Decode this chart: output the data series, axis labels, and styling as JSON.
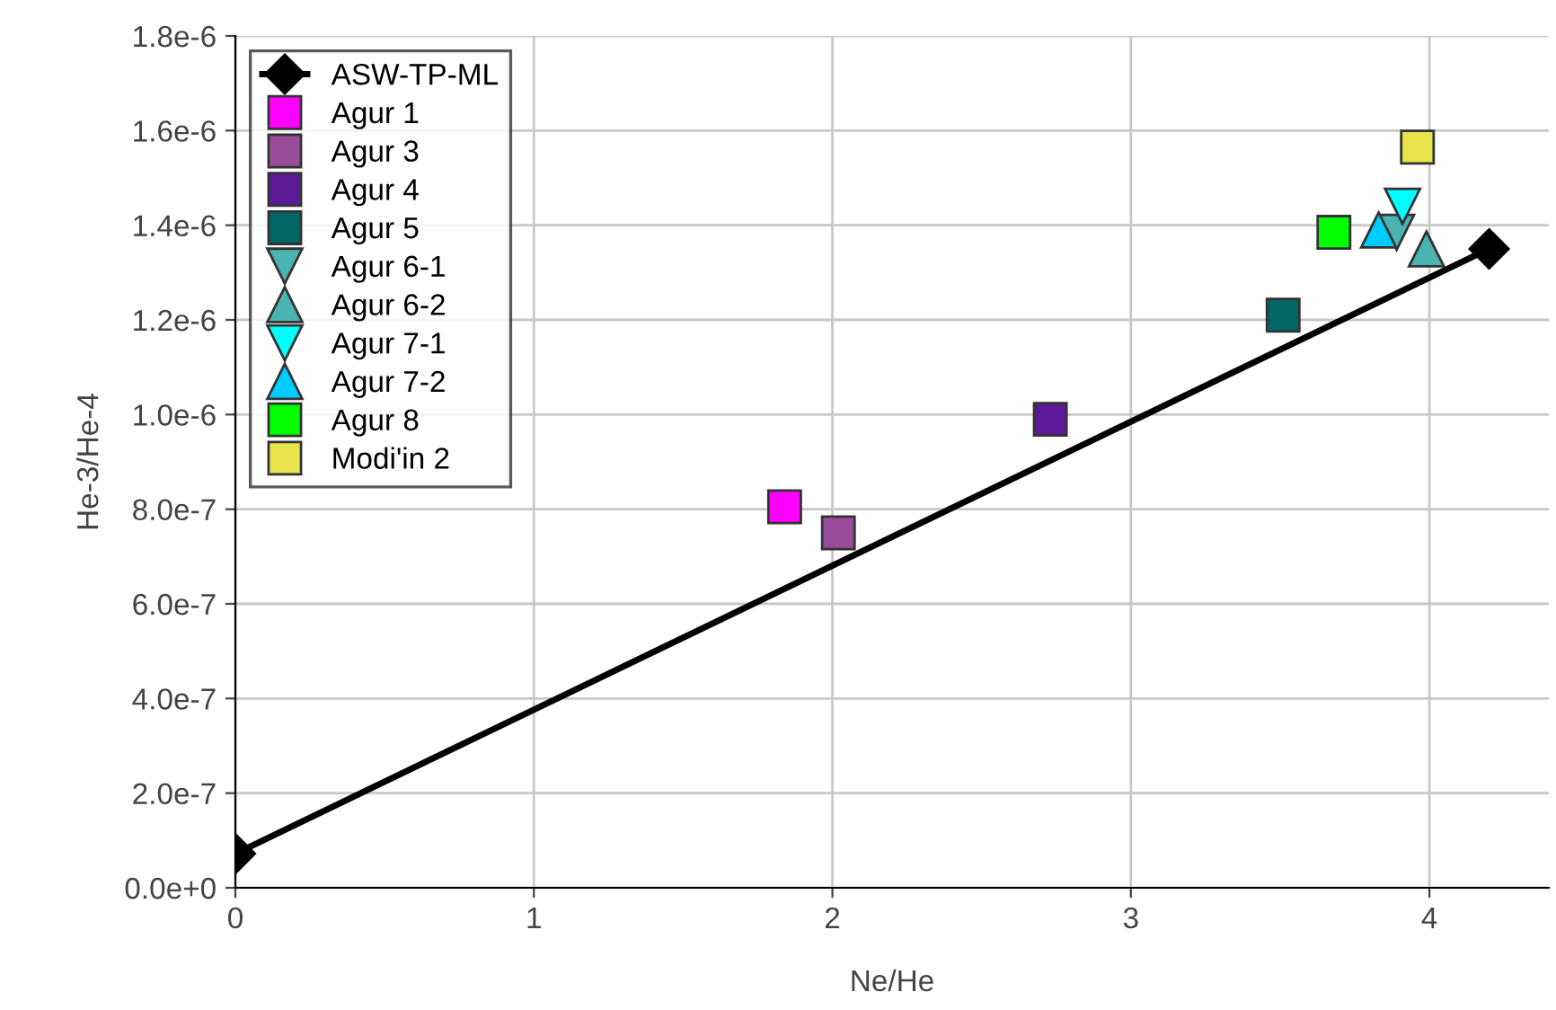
{
  "chart_data": {
    "type": "scatter",
    "xlabel": "Ne/He",
    "ylabel": "He-3/He-4",
    "xlim": [
      0,
      4.4
    ],
    "ylim": [
      0,
      1.8e-06
    ],
    "xticks": [
      0,
      1,
      2,
      3,
      4
    ],
    "yticks": [
      {
        "value": 0,
        "label": "0.0e+0"
      },
      {
        "value": 2e-07,
        "label": "2.0e-7"
      },
      {
        "value": 4e-07,
        "label": "4.0e-7"
      },
      {
        "value": 6e-07,
        "label": "6.0e-7"
      },
      {
        "value": 8e-07,
        "label": "8.0e-7"
      },
      {
        "value": 1e-06,
        "label": "1.0e-6"
      },
      {
        "value": 1.2e-06,
        "label": "1.2e-6"
      },
      {
        "value": 1.4e-06,
        "label": "1.4e-6"
      },
      {
        "value": 1.6e-06,
        "label": "1.6e-6"
      },
      {
        "value": 1.8e-06,
        "label": "1.8e-6"
      }
    ],
    "grid": true,
    "legend": "top left",
    "series": [
      {
        "name": "ASW-TP-ML",
        "type": "line",
        "marker": "diamond",
        "color": "#000000",
        "x": [
          0,
          4.2
        ],
        "values": [
          7.2e-08,
          1.35e-06
        ]
      },
      {
        "name": "Agur 1",
        "marker": "square",
        "color": "#ff00ff",
        "x": [
          1.84
        ],
        "values": [
          8.05e-07
        ]
      },
      {
        "name": "Agur 3",
        "marker": "square",
        "color": "#994c99",
        "x": [
          2.02
        ],
        "values": [
          7.5e-07
        ]
      },
      {
        "name": "Agur 4",
        "marker": "square",
        "color": "#5c1a99",
        "x": [
          2.73
        ],
        "values": [
          9.9e-07
        ]
      },
      {
        "name": "Agur 5",
        "marker": "square",
        "color": "#006666",
        "x": [
          3.51
        ],
        "values": [
          1.21e-06
        ]
      },
      {
        "name": "Agur 6-1",
        "marker": "triangle_down",
        "color": "#4cb3b3",
        "x": [
          3.89
        ],
        "values": [
          1.385e-06
        ]
      },
      {
        "name": "Agur 6-2",
        "marker": "triangle",
        "color": "#4cb3b3",
        "x": [
          3.99
        ],
        "values": [
          1.35e-06
        ]
      },
      {
        "name": "Agur 7-1",
        "marker": "triangle_down",
        "color": "#00ffff",
        "x": [
          3.91
        ],
        "values": [
          1.44e-06
        ]
      },
      {
        "name": "Agur 7-2",
        "marker": "triangle",
        "color": "#00ccff",
        "x": [
          3.83
        ],
        "values": [
          1.39e-06
        ]
      },
      {
        "name": "Agur 8",
        "marker": "square",
        "color": "#00ff00",
        "x": [
          3.68
        ],
        "values": [
          1.385e-06
        ]
      },
      {
        "name": "Modi'in 2",
        "marker": "square",
        "color": "#e6e64c",
        "x": [
          3.96
        ],
        "values": [
          1.565e-06
        ]
      }
    ]
  }
}
